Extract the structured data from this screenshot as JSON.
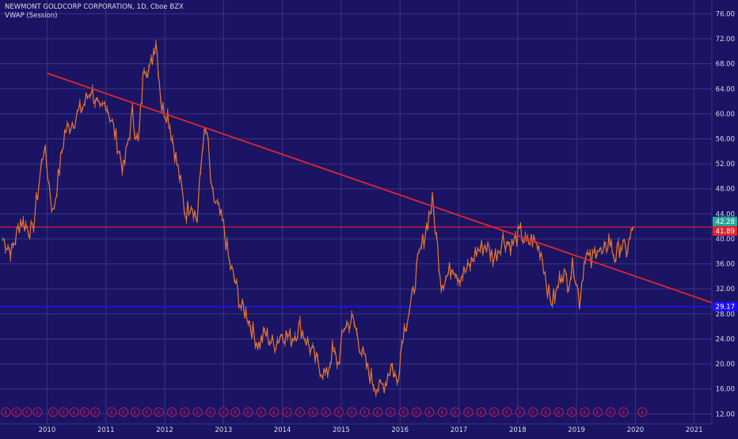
{
  "header": {
    "title": "NEWMONT GOLDCORP CORPORATION, 1D, Cboe BZX",
    "indicator": "VWAP (Session)"
  },
  "colors": {
    "background": "#1b1464",
    "grid": "#3a3584",
    "candle": "#e8772d",
    "candle_alt": "#2aa39c",
    "trendline": "#e0262e",
    "resistance": "#e0262e",
    "support": "#1e10ff",
    "price_badge": "#26a69a",
    "axis_text": "#d7d9e6",
    "earnings_marker": "#c2185b"
  },
  "chart_data": {
    "type": "line",
    "title": "NEWMONT GOLDCORP CORPORATION, 1D, Cboe BZX",
    "xlabel": "",
    "ylabel": "",
    "x_ticks": [
      "2010",
      "2011",
      "2012",
      "2013",
      "2014",
      "2015",
      "2016",
      "2017",
      "2018",
      "2019",
      "2020",
      "2021"
    ],
    "y_ticks": [
      "12.00",
      "16.00",
      "20.00",
      "24.00",
      "28.00",
      "32.00",
      "36.00",
      "40.00",
      "44.00",
      "48.00",
      "52.00",
      "56.00",
      "60.00",
      "64.00",
      "68.00",
      "72.00",
      "76.00"
    ],
    "xlim": [
      2009.2,
      2021.3
    ],
    "ylim": [
      10.4,
      78.2
    ],
    "grid": true,
    "series": [
      {
        "x": [
          2009.25,
          2009.4,
          2009.55,
          2009.75,
          2009.95,
          2010.1,
          2010.3,
          2010.45,
          2010.6,
          2010.75,
          2010.9,
          2011.0,
          2011.15,
          2011.3,
          2011.45,
          2011.55,
          2011.65,
          2011.75,
          2011.85,
          2011.95,
          2012.05,
          2012.15,
          2012.25,
          2012.35,
          2012.45,
          2012.55,
          2012.65,
          2012.72,
          2012.8,
          2012.9,
          2013.0,
          2013.1,
          2013.2,
          2013.3,
          2013.4,
          2013.5,
          2013.6,
          2013.7,
          2013.85,
          2014.0,
          2014.15,
          2014.3,
          2014.45,
          2014.6,
          2014.75,
          2014.85,
          2014.95,
          2015.05,
          2015.2,
          2015.35,
          2015.45,
          2015.55,
          2015.65,
          2015.75,
          2015.85,
          2015.95,
          2016.05,
          2016.2,
          2016.3,
          2016.45,
          2016.55,
          2016.62,
          2016.7,
          2016.8,
          2016.9,
          2017.0,
          2017.15,
          2017.3,
          2017.45,
          2017.6,
          2017.75,
          2017.9,
          2018.05,
          2018.15,
          2018.25,
          2018.4,
          2018.55,
          2018.65,
          2018.75,
          2018.85,
          2018.95,
          2019.05,
          2019.15,
          2019.25,
          2019.35,
          2019.45,
          2019.55,
          2019.65,
          2019.75,
          2019.85,
          2019.97
        ],
        "y": [
          40,
          38,
          43,
          41,
          55,
          44,
          57,
          59,
          61,
          64,
          60,
          62,
          57,
          51,
          60,
          55,
          68,
          67,
          72,
          61,
          60,
          55,
          50,
          44,
          46,
          43,
          56,
          57,
          47,
          45,
          42,
          36,
          33,
          29,
          28,
          25,
          23,
          25,
          23,
          25,
          24,
          26,
          23,
          20,
          18,
          22,
          20,
          26,
          27,
          22,
          19,
          17,
          16,
          17,
          20,
          17,
          25,
          30,
          36,
          42,
          46,
          40,
          33,
          34,
          36,
          34,
          35,
          38,
          39,
          37,
          40,
          39,
          41,
          39,
          40,
          38,
          30,
          31,
          35,
          33,
          36,
          30,
          38,
          36,
          39,
          37,
          40,
          37,
          39,
          38,
          42
        ]
      }
    ],
    "annotations": [
      {
        "type": "trendline",
        "x": [
          2010.0,
          2021.3
        ],
        "y": [
          66.5,
          29.8
        ]
      },
      {
        "type": "hline",
        "y": 41.89,
        "label": "41.89"
      },
      {
        "type": "hline",
        "y": 29.17,
        "label": "29.17"
      }
    ],
    "price_labels": [
      {
        "value": "42.28",
        "y": 42.28
      },
      {
        "value": "41.89",
        "y": 41.89
      },
      {
        "value": "29.17",
        "y": 29.17
      }
    ],
    "earnings_markers": [
      2009.3,
      2009.48,
      2009.66,
      2009.84,
      2010.1,
      2010.28,
      2010.46,
      2010.64,
      2010.82,
      2011.1,
      2011.3,
      2011.5,
      2011.7,
      2011.9,
      2012.12,
      2012.34,
      2012.56,
      2012.78,
      2013.0,
      2013.2,
      2013.42,
      2013.64,
      2013.86,
      2014.08,
      2014.3,
      2014.52,
      2014.74,
      2014.96,
      2015.18,
      2015.4,
      2015.62,
      2015.84,
      2016.06,
      2016.28,
      2016.5,
      2016.72,
      2016.94,
      2017.16,
      2017.38,
      2017.6,
      2017.82,
      2018.04,
      2018.26,
      2018.48,
      2018.7,
      2018.92,
      2019.14,
      2019.36,
      2019.58,
      2019.8,
      2020.12
    ],
    "earnings_label": "E"
  }
}
